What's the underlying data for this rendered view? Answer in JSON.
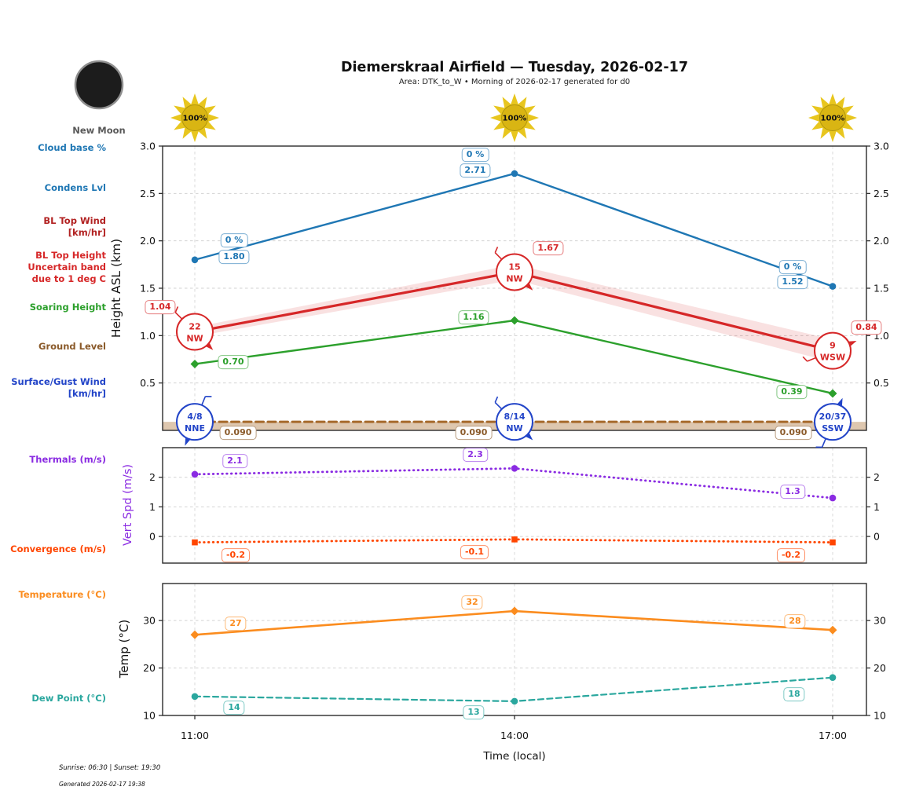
{
  "header": {
    "title": "Diemerskraal Airfield — Tuesday, 2026-02-17",
    "subtitle": "Area: DTK_to_W • Morning of 2026-02-17 generated for d0"
  },
  "moon": {
    "phase_label": "New Moon"
  },
  "sunshine": {
    "values": [
      "100%",
      "100%",
      "100%"
    ]
  },
  "row_labels": {
    "cloud_base": "Cloud base %",
    "condens_lvl": "Condens Lvl",
    "bl_top_wind": [
      "BL Top Wind",
      "[km/hr]"
    ],
    "bl_top_height": [
      "BL Top Height",
      "Uncertain band",
      "due to 1 deg C"
    ],
    "soaring_height": "Soaring Height",
    "ground_level": "Ground Level",
    "surface_wind": [
      "Surface/Gust Wind",
      "[km/hr]"
    ],
    "thermals": "Thermals (m/s)",
    "convergence": "Convergence (m/s)",
    "temperature": "Temperature (°C)",
    "dew_point": "Dew Point (°C)"
  },
  "colors": {
    "condens_blue": "#1f77b4",
    "bl_red": "#d62728",
    "bl_wind_dark_red": "#b22222",
    "soaring_green": "#2ca02c",
    "ground_brown_line": "#a6692b",
    "ground_brown_text": "#8a5a2a",
    "surface_wind_blue": "#2244c8",
    "thermals_purple": "#8a2be2",
    "convergence_orangered": "#ff4500",
    "temperature_orange": "#fb8c1e",
    "dew_teal": "#2aa79e",
    "sun_gold": "#e8c61e",
    "grid_gray": "#d2d2d2"
  },
  "chart_data": [
    {
      "type": "line",
      "ylabel": "Height ASL (km)",
      "ylim": [
        0,
        3.0
      ],
      "yticks": [
        "0.5",
        "1.0",
        "1.5",
        "2.0",
        "2.5",
        "3.0"
      ],
      "x": [
        "11:00",
        "14:00",
        "17:00"
      ],
      "series": [
        {
          "name": "Condens Lvl",
          "color": "#1f77b4",
          "style": "solid",
          "marker": "circle",
          "values": [
            1.8,
            2.71,
            1.52
          ],
          "point_labels": [
            "1.80",
            "2.71",
            "1.52"
          ],
          "cloud_base_labels": [
            "0 %",
            "0 %",
            "0 %"
          ]
        },
        {
          "name": "BL Top Height",
          "color": "#d62728",
          "style": "solid",
          "marker": "none",
          "values": [
            1.04,
            1.67,
            0.84
          ],
          "point_labels": [
            "1.04",
            "1.67",
            "0.84"
          ],
          "uncertainty_band": [
            [
              0.99,
              1.09
            ],
            [
              1.59,
              1.75
            ],
            [
              0.72,
              0.96
            ]
          ],
          "wind_markers": [
            {
              "speed": "22",
              "dir": "NW"
            },
            {
              "speed": "15",
              "dir": "NW"
            },
            {
              "speed": "9",
              "dir": "WSW"
            }
          ]
        },
        {
          "name": "Soaring Height",
          "color": "#2ca02c",
          "style": "solid",
          "marker": "diamond",
          "values": [
            0.7,
            1.16,
            0.39
          ],
          "point_labels": [
            "0.70",
            "1.16",
            "0.39"
          ]
        },
        {
          "name": "Ground Level",
          "color": "#a6692b",
          "style": "dashed",
          "marker": "none",
          "values": [
            0.09,
            0.09,
            0.09
          ],
          "point_labels": [
            "0.090",
            "0.090",
            "0.090"
          ],
          "fill_below": true
        }
      ],
      "surface_wind_markers": [
        {
          "speed": "4/8",
          "dir": "NNE"
        },
        {
          "speed": "8/14",
          "dir": "NW"
        },
        {
          "speed": "20/37",
          "dir": "SSW"
        }
      ]
    },
    {
      "type": "line",
      "ylabel": "Vert Spd (m/s)",
      "ylim": [
        -0.9,
        3.0
      ],
      "yticks": [
        "0",
        "1",
        "2"
      ],
      "x": [
        "11:00",
        "14:00",
        "17:00"
      ],
      "series": [
        {
          "name": "Thermals (m/s)",
          "color": "#8a2be2",
          "style": "dotted",
          "marker": "circle",
          "values": [
            2.1,
            2.3,
            1.3
          ],
          "point_labels": [
            "2.1",
            "2.3",
            "1.3"
          ]
        },
        {
          "name": "Convergence (m/s)",
          "color": "#ff4500",
          "style": "dotted",
          "marker": "square",
          "values": [
            -0.2,
            -0.1,
            -0.2
          ],
          "point_labels": [
            "-0.2",
            "-0.1",
            "-0.2"
          ]
        }
      ]
    },
    {
      "type": "line",
      "ylabel": "Temp (°C)",
      "ylim": [
        10,
        37.8
      ],
      "yticks": [
        "10",
        "20",
        "30"
      ],
      "x": [
        "11:00",
        "14:00",
        "17:00"
      ],
      "series": [
        {
          "name": "Temperature (°C)",
          "color": "#fb8c1e",
          "style": "solid",
          "marker": "diamond",
          "values": [
            27,
            32,
            28
          ],
          "point_labels": [
            "27",
            "32",
            "28"
          ]
        },
        {
          "name": "Dew Point (°C)",
          "color": "#2aa79e",
          "style": "dashed",
          "marker": "circle",
          "values": [
            14,
            13,
            18
          ],
          "point_labels": [
            "14",
            "13",
            "18"
          ]
        }
      ]
    }
  ],
  "xaxis": {
    "label": "Time (local)",
    "ticks": [
      "11:00",
      "14:00",
      "17:00"
    ]
  },
  "footer": {
    "sun_times": "Sunrise: 06:30 | Sunset: 19:30",
    "generated": "Generated 2026-02-17 19:38"
  }
}
